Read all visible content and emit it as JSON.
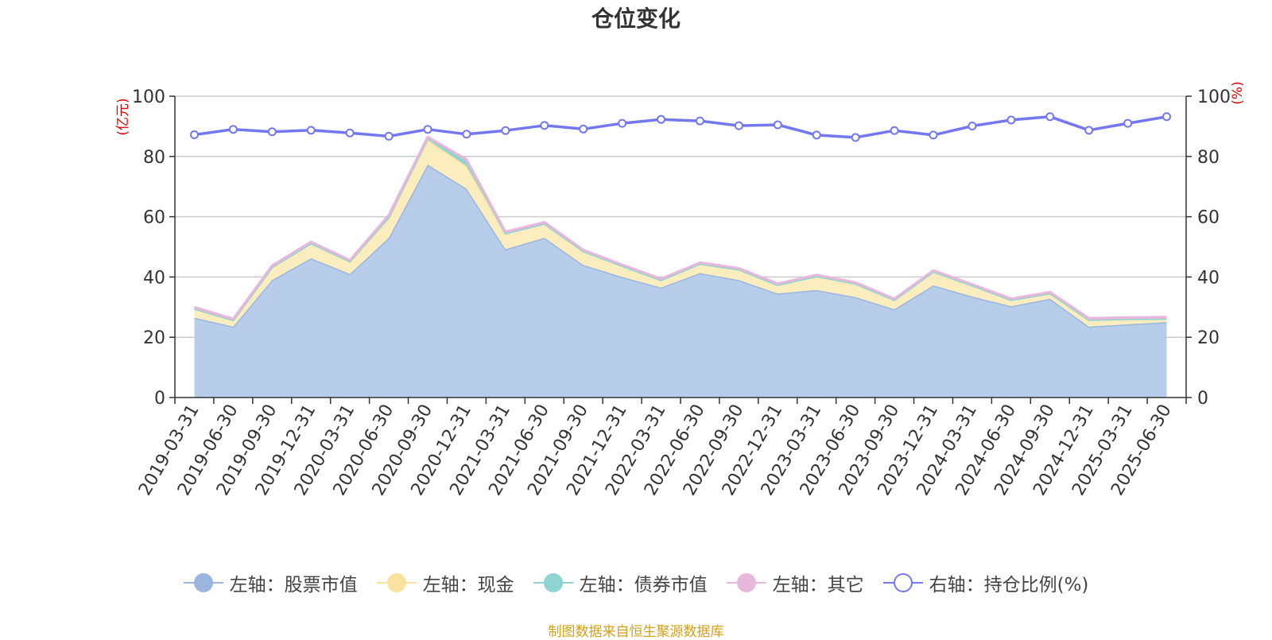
{
  "title": "仓位变化",
  "source": "制图数据来自恒生聚源数据库",
  "chart_data": {
    "type": "area",
    "title": "仓位变化",
    "x": [
      "2019-03-31",
      "2019-06-30",
      "2019-09-30",
      "2019-12-31",
      "2020-03-31",
      "2020-06-30",
      "2020-09-30",
      "2020-12-31",
      "2021-03-31",
      "2021-06-30",
      "2021-09-30",
      "2021-12-31",
      "2022-03-31",
      "2022-06-30",
      "2022-09-30",
      "2022-12-31",
      "2023-03-31",
      "2023-06-30",
      "2023-09-30",
      "2023-12-31",
      "2024-03-31",
      "2024-06-30",
      "2024-09-30",
      "2024-12-31",
      "2025-03-31",
      "2025-06-30"
    ],
    "left_axis": {
      "unit": "(亿元)",
      "ylim": [
        0,
        100
      ],
      "ticks": [
        0,
        20,
        40,
        60,
        80,
        100
      ]
    },
    "right_axis": {
      "unit": "(%)",
      "ylim": [
        0,
        100
      ],
      "ticks": [
        0,
        20,
        40,
        60,
        80,
        100
      ]
    },
    "grid": true,
    "legend_position": "bottom",
    "series": [
      {
        "name": "左轴：股票市值",
        "axis": "left",
        "stacked": true,
        "color": "#9ab5e0",
        "fill": "#b7cdea",
        "values": [
          26.5,
          23.5,
          39,
          46.2,
          41,
          53,
          77.3,
          69.3,
          49.2,
          53,
          44,
          40,
          36.5,
          41.3,
          39,
          34.5,
          35.7,
          33.3,
          29.3,
          37.2,
          33.5,
          30.3,
          32.8,
          23.5,
          24.3,
          25
        ]
      },
      {
        "name": "左轴：现金",
        "axis": "left",
        "stacked": true,
        "color": "#f7e2a0",
        "fill": "#fbedbe",
        "values": [
          3,
          2.2,
          4.3,
          5,
          4.2,
          6.5,
          8.3,
          7.5,
          5.3,
          4.7,
          4.6,
          3.7,
          2.5,
          3.1,
          3.5,
          2.9,
          4.6,
          4.5,
          3.1,
          4.6,
          3.7,
          2.1,
          1.8,
          2.3,
          1.8,
          1.2
        ]
      },
      {
        "name": "左轴：债券市值",
        "axis": "left",
        "stacked": true,
        "color": "#8fd3d3",
        "fill": "#8fd3d3",
        "values": [
          0,
          0,
          0,
          0,
          0,
          0.5,
          0.4,
          1.7,
          0,
          0,
          0,
          0,
          0,
          0,
          0,
          0,
          0,
          0,
          0,
          0,
          0,
          0,
          0,
          0,
          0,
          0
        ]
      },
      {
        "name": "左轴：其它",
        "axis": "left",
        "stacked": true,
        "color": "#e8b8dc",
        "fill": "#e8b8dc",
        "values": [
          0.5,
          0.4,
          0.5,
          0.5,
          0.4,
          0.6,
          0.5,
          0.5,
          0.5,
          0.5,
          0.4,
          0.4,
          0.4,
          0.4,
          0.4,
          0.4,
          0.4,
          0.4,
          0.4,
          0.4,
          0.4,
          0.4,
          0.4,
          0.5,
          0.5,
          0.5
        ]
      },
      {
        "name": "右轴：持仓比例(%)",
        "axis": "right",
        "stacked": false,
        "color": "#7378f0",
        "fill": "none",
        "values": [
          87.2,
          89,
          88.2,
          88.7,
          87.8,
          86.7,
          89,
          87.4,
          88.6,
          90.3,
          89.1,
          91,
          92.3,
          91.8,
          90.2,
          90.5,
          87.1,
          86.3,
          88.6,
          87.1,
          90.1,
          92.1,
          93.2,
          88.7,
          91,
          93.2
        ]
      }
    ]
  }
}
